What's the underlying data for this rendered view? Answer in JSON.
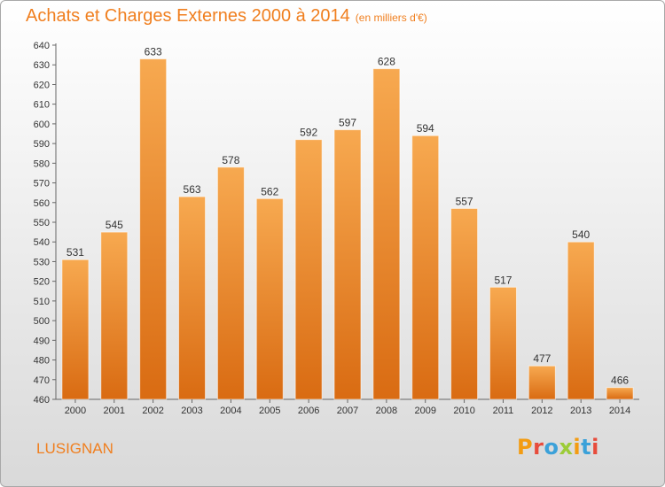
{
  "title": "Achats et Charges Externes 2000 à 2014",
  "unit": "(en milliers d'€)",
  "commune": "LUSIGNAN",
  "logo": {
    "letters": [
      "P",
      "r",
      "o",
      "x",
      "i",
      "t",
      "i"
    ],
    "colors": [
      "#f39c12",
      "#e74c3c",
      "#3ba1d9",
      "#9ccc38",
      "#f39c12",
      "#3ba1d9",
      "#e74c3c"
    ]
  },
  "colors": {
    "title": "#f07f1f",
    "bar_top": "#f7a950",
    "bar_bottom": "#d96b12"
  },
  "chart_data": {
    "type": "bar",
    "categories": [
      "2000",
      "2001",
      "2002",
      "2003",
      "2004",
      "2005",
      "2006",
      "2007",
      "2008",
      "2009",
      "2010",
      "2011",
      "2012",
      "2013",
      "2014"
    ],
    "values": [
      531,
      545,
      633,
      563,
      578,
      562,
      592,
      597,
      628,
      594,
      557,
      517,
      477,
      540,
      466
    ],
    "ylim": [
      460,
      640
    ],
    "yticks": [
      460,
      470,
      480,
      490,
      500,
      510,
      520,
      530,
      540,
      550,
      560,
      570,
      580,
      590,
      600,
      610,
      620,
      630,
      640
    ],
    "grid": false,
    "data_labels": true
  }
}
